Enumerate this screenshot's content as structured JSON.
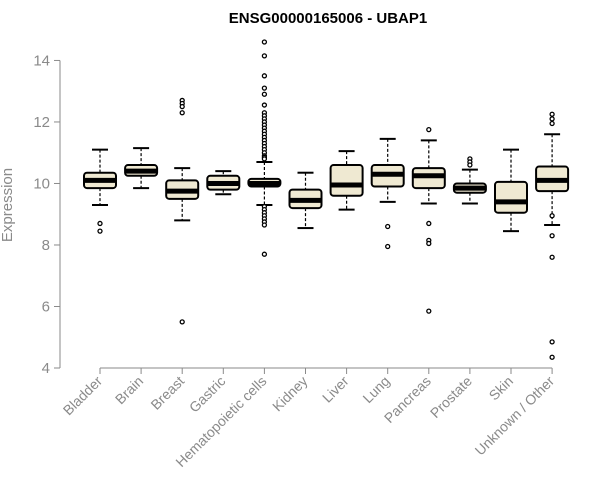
{
  "chart_data": {
    "type": "box",
    "title": "ENSG00000165006 - UBAP1",
    "ylabel": "Expression",
    "xlabel": "",
    "ylim": [
      4,
      14.6
    ],
    "yticks": [
      4,
      6,
      8,
      10,
      12,
      14
    ],
    "grid": false,
    "colors": {
      "box_fill": "#efe9d2",
      "stroke": "#000000",
      "axis": "#8a8a8a"
    },
    "categories": [
      "Bladder",
      "Brain",
      "Breast",
      "Gastric",
      "Hematopoietic cells",
      "Kidney",
      "Liver",
      "Lung",
      "Pancreas",
      "Prostate",
      "Skin",
      "Unknown / Other"
    ],
    "boxes": [
      {
        "whisker_low": 9.3,
        "q1": 9.85,
        "median": 10.1,
        "q3": 10.35,
        "whisker_high": 11.1,
        "outliers": [
          8.7,
          8.45
        ]
      },
      {
        "whisker_low": 9.85,
        "q1": 10.25,
        "median": 10.4,
        "q3": 10.6,
        "whisker_high": 11.15,
        "outliers": []
      },
      {
        "whisker_low": 8.8,
        "q1": 9.5,
        "median": 9.75,
        "q3": 10.1,
        "whisker_high": 10.5,
        "outliers": [
          12.7,
          12.6,
          12.5,
          12.3,
          5.5
        ]
      },
      {
        "whisker_low": 9.65,
        "q1": 9.8,
        "median": 10.0,
        "q3": 10.25,
        "whisker_high": 10.4,
        "outliers": []
      },
      {
        "whisker_low": 9.3,
        "q1": 9.9,
        "median": 10.0,
        "q3": 10.15,
        "whisker_high": 10.7,
        "outliers": [
          14.6,
          14.15,
          13.5,
          13.1,
          12.9,
          12.55,
          12.3,
          12.2,
          12.1,
          12.0,
          11.9,
          11.8,
          11.7,
          11.6,
          11.5,
          11.4,
          11.3,
          11.2,
          11.1,
          11.0,
          10.9,
          10.85,
          10.8,
          9.25,
          9.15,
          9.05,
          8.95,
          8.85,
          8.75,
          8.65,
          7.7
        ]
      },
      {
        "whisker_low": 8.55,
        "q1": 9.2,
        "median": 9.45,
        "q3": 9.8,
        "whisker_high": 10.35,
        "outliers": []
      },
      {
        "whisker_low": 9.15,
        "q1": 9.6,
        "median": 9.95,
        "q3": 10.6,
        "whisker_high": 11.05,
        "outliers": []
      },
      {
        "whisker_low": 9.4,
        "q1": 9.9,
        "median": 10.3,
        "q3": 10.6,
        "whisker_high": 11.45,
        "outliers": [
          8.6,
          7.95
        ]
      },
      {
        "whisker_low": 9.35,
        "q1": 9.85,
        "median": 10.25,
        "q3": 10.5,
        "whisker_high": 11.4,
        "outliers": [
          11.75,
          8.7,
          8.15,
          8.05,
          5.85
        ]
      },
      {
        "whisker_low": 9.35,
        "q1": 9.7,
        "median": 9.85,
        "q3": 10.0,
        "whisker_high": 10.45,
        "outliers": [
          10.8,
          10.7,
          10.6
        ]
      },
      {
        "whisker_low": 8.45,
        "q1": 9.05,
        "median": 9.4,
        "q3": 10.05,
        "whisker_high": 11.1,
        "outliers": []
      },
      {
        "whisker_low": 8.65,
        "q1": 9.75,
        "median": 10.1,
        "q3": 10.55,
        "whisker_high": 11.6,
        "outliers": [
          12.25,
          12.1,
          11.95,
          8.95,
          8.3,
          7.6,
          4.85,
          4.35
        ]
      }
    ]
  }
}
